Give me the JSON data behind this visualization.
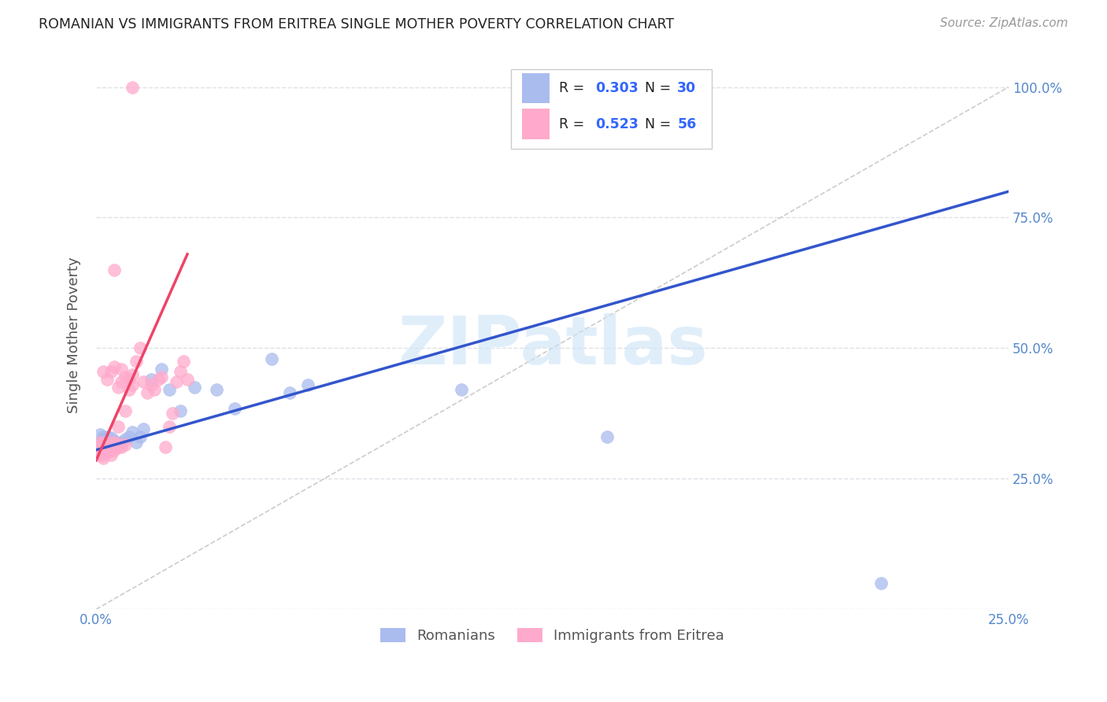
{
  "title": "ROMANIAN VS IMMIGRANTS FROM ERITREA SINGLE MOTHER POVERTY CORRELATION CHART",
  "source": "Source: ZipAtlas.com",
  "ylabel": "Single Mother Poverty",
  "watermark": "ZIPatlas",
  "background_color": "#ffffff",
  "plot_bg_color": "#ffffff",
  "grid_color": "#e0e0e8",
  "romanians_R": "0.303",
  "romanians_N": "30",
  "eritrea_R": "0.523",
  "eritrea_N": "56",
  "blue_color": "#aabbee",
  "pink_color": "#ffaacc",
  "blue_line_color": "#3355cc",
  "pink_line_color": "#ee4466",
  "ref_line_color": "#cccccc",
  "xlim": [
    0.0,
    0.25
  ],
  "ylim": [
    0.0,
    1.05
  ],
  "romanians_x": [
    0.001,
    0.002,
    0.002,
    0.003,
    0.003,
    0.004,
    0.004,
    0.005,
    0.005,
    0.006,
    0.007,
    0.008,
    0.009,
    0.01,
    0.011,
    0.012,
    0.013,
    0.015,
    0.018,
    0.02,
    0.023,
    0.027,
    0.033,
    0.038,
    0.048,
    0.053,
    0.058,
    0.1,
    0.14,
    0.215
  ],
  "romanians_y": [
    0.335,
    0.33,
    0.325,
    0.315,
    0.33,
    0.32,
    0.328,
    0.318,
    0.322,
    0.315,
    0.32,
    0.325,
    0.33,
    0.34,
    0.32,
    0.33,
    0.345,
    0.44,
    0.46,
    0.42,
    0.38,
    0.425,
    0.42,
    0.385,
    0.48,
    0.415,
    0.43,
    0.42,
    0.33,
    0.05
  ],
  "eritrea_x": [
    0.001,
    0.001,
    0.001,
    0.001,
    0.001,
    0.002,
    0.002,
    0.002,
    0.002,
    0.002,
    0.002,
    0.003,
    0.003,
    0.003,
    0.003,
    0.003,
    0.004,
    0.004,
    0.004,
    0.004,
    0.005,
    0.005,
    0.005,
    0.005,
    0.006,
    0.006,
    0.006,
    0.006,
    0.007,
    0.007,
    0.007,
    0.007,
    0.008,
    0.008,
    0.008,
    0.009,
    0.009,
    0.01,
    0.01,
    0.011,
    0.012,
    0.013,
    0.014,
    0.015,
    0.016,
    0.017,
    0.018,
    0.019,
    0.02,
    0.021,
    0.022,
    0.023,
    0.024,
    0.025,
    0.005,
    0.01
  ],
  "eritrea_y": [
    0.31,
    0.305,
    0.315,
    0.295,
    0.32,
    0.305,
    0.295,
    0.31,
    0.315,
    0.29,
    0.455,
    0.31,
    0.305,
    0.3,
    0.315,
    0.44,
    0.295,
    0.305,
    0.32,
    0.455,
    0.31,
    0.305,
    0.32,
    0.465,
    0.31,
    0.315,
    0.35,
    0.425,
    0.31,
    0.315,
    0.435,
    0.46,
    0.315,
    0.38,
    0.445,
    0.42,
    0.44,
    0.43,
    0.45,
    0.475,
    0.5,
    0.435,
    0.415,
    0.43,
    0.42,
    0.44,
    0.445,
    0.31,
    0.35,
    0.375,
    0.435,
    0.455,
    0.475,
    0.44,
    0.65,
    1.0
  ],
  "blue_trend_x0": 0.0,
  "blue_trend_y0": 0.305,
  "blue_trend_x1": 0.25,
  "blue_trend_y1": 0.8,
  "pink_trend_x0": 0.0,
  "pink_trend_y0": 0.285,
  "pink_trend_x1": 0.025,
  "pink_trend_y1": 0.68,
  "ref_line_x0": 0.0,
  "ref_line_y0": 0.0,
  "ref_line_x1": 0.25,
  "ref_line_y1": 1.0
}
